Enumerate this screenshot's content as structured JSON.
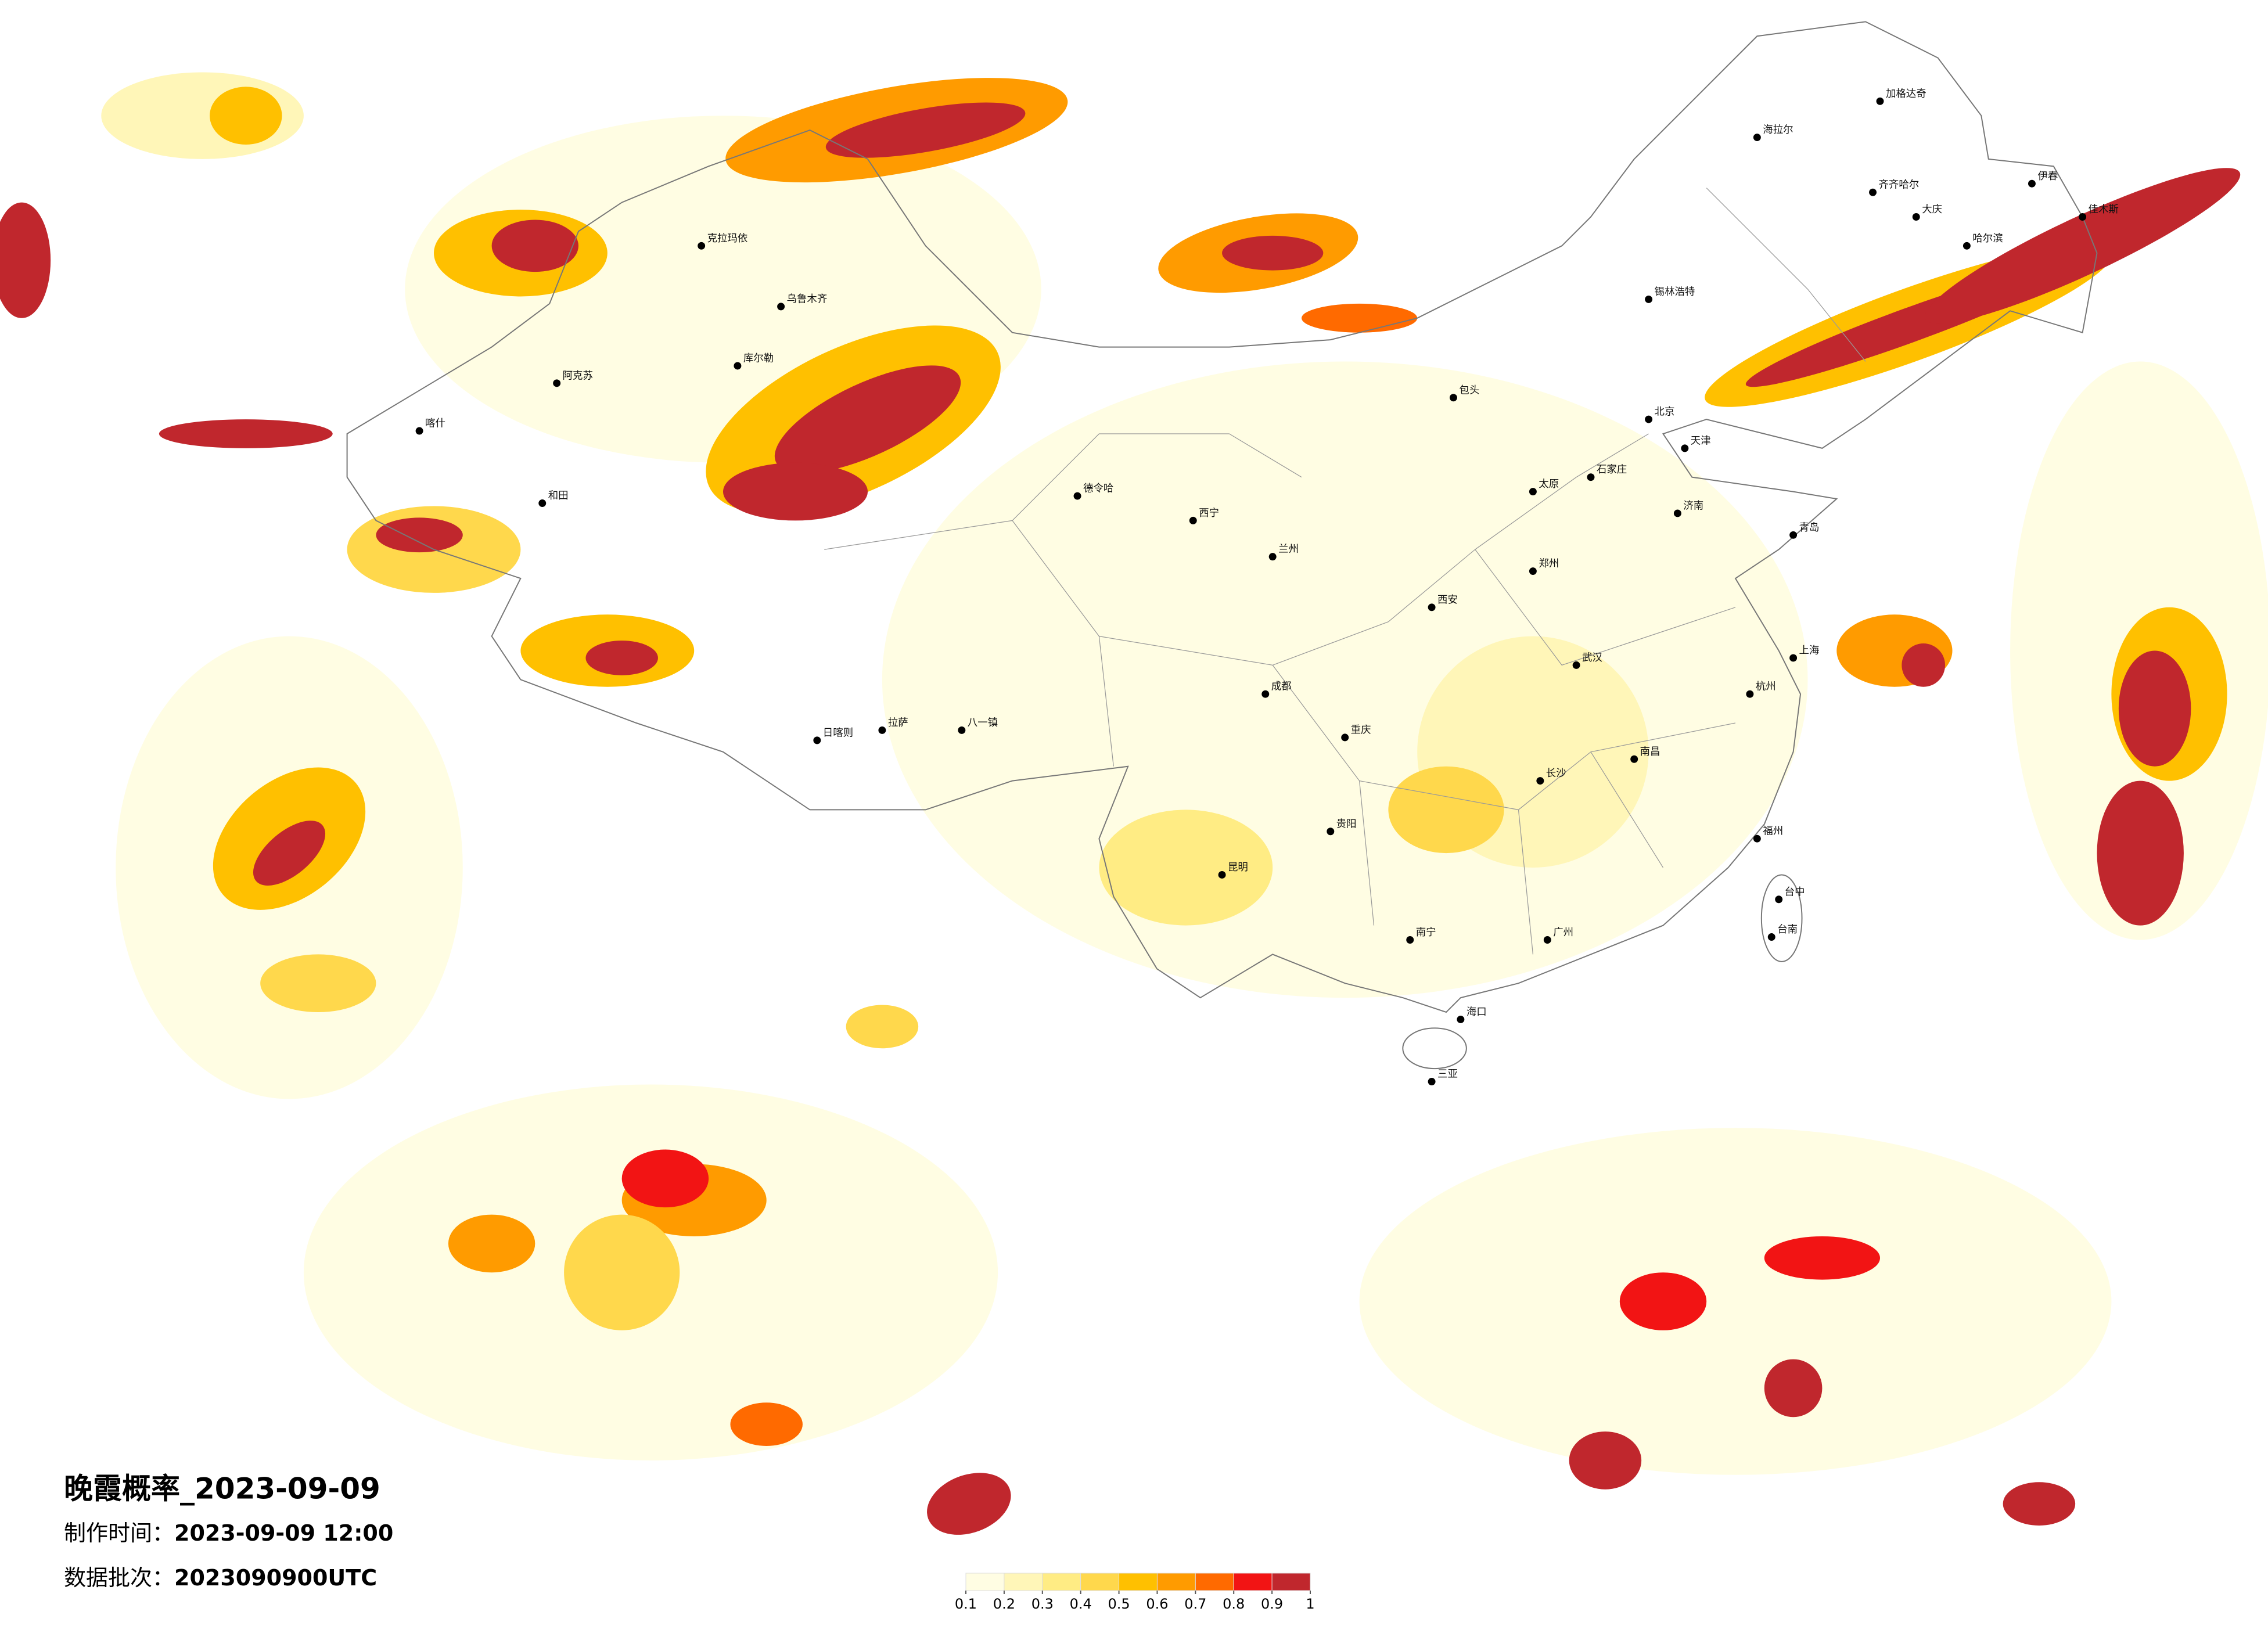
{
  "title": "晚霞概率_2023-09-09",
  "info": [
    {
      "label": "制作时间：",
      "value": "2023-09-09 12:00"
    },
    {
      "label": "数据批次：",
      "value": "2023090900UTC"
    }
  ],
  "legend": {
    "ticks": [
      0.1,
      0.2,
      0.3,
      0.4,
      0.5,
      0.6,
      0.7,
      0.8,
      0.9,
      1
    ],
    "colors": [
      "#fffde3",
      "#fff6b8",
      "#ffec84",
      "#ffd84c",
      "#ffc000",
      "#ff9b00",
      "#ff6a00",
      "#f21414",
      "#c0272d"
    ]
  },
  "cities": [
    "加格达奇",
    "海拉尔",
    "齐齐哈尔",
    "大庆",
    "哈尔滨",
    "伊春",
    "佳木斯",
    "锡林浩特",
    "包头",
    "北京",
    "天津",
    "石家庄",
    "太原",
    "济南",
    "青岛",
    "郑州",
    "西安",
    "兰州",
    "西宁",
    "乌鲁木齐",
    "克拉玛依",
    "库尔勒",
    "阿克苏",
    "和田",
    "喀什",
    "德令哈",
    "拉萨",
    "日喀则",
    "八一镇",
    "成都",
    "重庆",
    "贵阳",
    "昆明",
    "南宁",
    "广州",
    "长沙",
    "武汉",
    "南昌",
    "杭州",
    "上海",
    "福州",
    "台中",
    "台南",
    "海口",
    "三亚"
  ]
}
